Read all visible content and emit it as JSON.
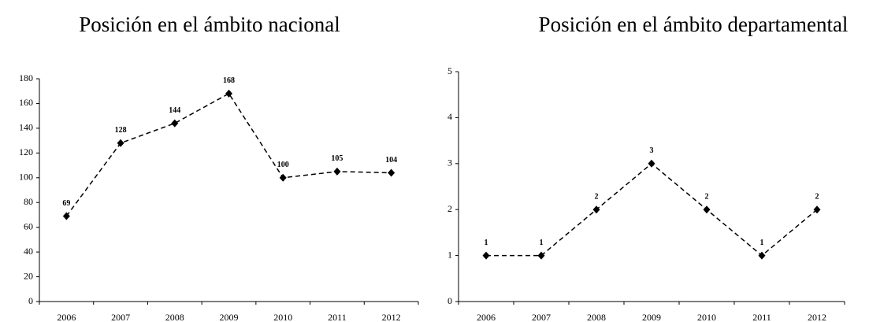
{
  "chart_data": [
    {
      "type": "line",
      "title": "Posición en el ámbito nacional",
      "categories": [
        "2006",
        "2007",
        "2008",
        "2009",
        "2010",
        "2011",
        "2012"
      ],
      "values": [
        69,
        128,
        144,
        168,
        100,
        105,
        104
      ],
      "color": "#000000",
      "ylim": [
        0,
        180
      ],
      "yticks": [
        0,
        20,
        40,
        60,
        80,
        100,
        120,
        140,
        160,
        180
      ],
      "grid": false
    },
    {
      "type": "line",
      "title": "Posición en el ámbito departamental",
      "categories": [
        "2006",
        "2007",
        "2008",
        "2009",
        "2010",
        "2011",
        "2012"
      ],
      "values": [
        1,
        1,
        2,
        3,
        2,
        1,
        2
      ],
      "color": "#000000",
      "ylim": [
        0,
        5
      ],
      "yticks": [
        0,
        1,
        2,
        3,
        4,
        5
      ],
      "grid": false
    }
  ]
}
